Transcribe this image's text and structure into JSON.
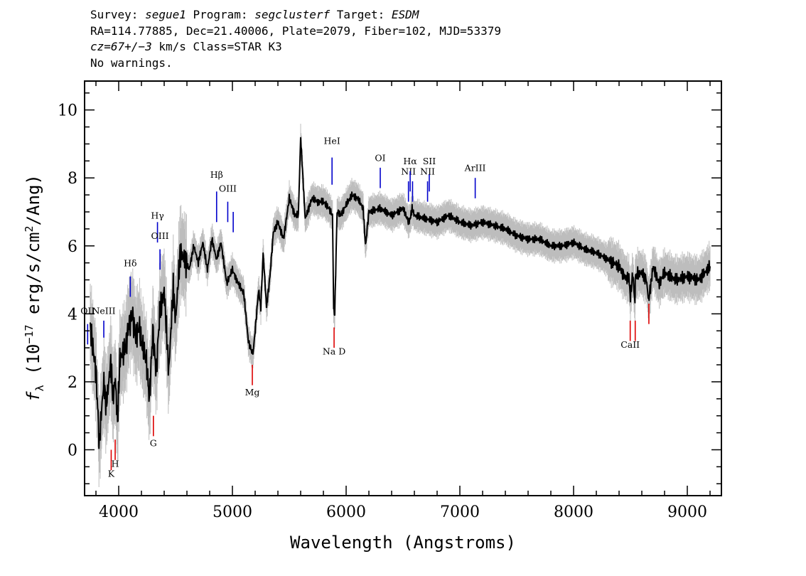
{
  "header": {
    "line1": {
      "survey_label": "Survey: ",
      "survey": "segue1",
      "program_label": " Program: ",
      "program": "segclusterf",
      "target_label": " Target: ",
      "target": "ESDM"
    },
    "line2": "RA=114.77885, Dec=21.40006, Plate=2079, Fiber=102, MJD=53379",
    "line3": {
      "cz": "cz=67+/−3",
      "rest": " km/s Class=STAR K3"
    },
    "line4": "No warnings."
  },
  "colors": {
    "flux": "#000000",
    "error": "#bdbdbd",
    "emission": "#0000cc",
    "absorption": "#dd0000",
    "axes": "#000000"
  },
  "chart_data": {
    "type": "line",
    "xlabel": "Wavelength (Angstroms)",
    "ylabel": "fλ (10⁻¹⁷ erg/s/cm²/Ang)",
    "xlim": [
      3700,
      9300
    ],
    "ylim": [
      -1.35,
      10.85
    ],
    "x_ticks": [
      4000,
      5000,
      6000,
      7000,
      8000,
      9000
    ],
    "y_ticks": [
      0,
      2,
      4,
      6,
      8,
      10
    ],
    "grid": false,
    "series": [
      {
        "x": [
          3750,
          3800,
          3830,
          3850,
          3870,
          3890,
          3910,
          3930,
          3950,
          3970,
          3990,
          4010,
          4030,
          4060,
          4090,
          4120,
          4150,
          4180,
          4210,
          4240,
          4270,
          4300,
          4330,
          4360,
          4400,
          4440,
          4480,
          4500,
          4540,
          4580,
          4620,
          4660,
          4700,
          4740,
          4780,
          4820,
          4860,
          4900,
          4950,
          5000,
          5050,
          5100,
          5140,
          5170,
          5180,
          5200,
          5230,
          5250,
          5270,
          5300,
          5330,
          5360,
          5400,
          5450,
          5500,
          5550,
          5580,
          5600,
          5640,
          5700,
          5750,
          5800,
          5850,
          5880,
          5890,
          5900,
          5920,
          5950,
          6000,
          6050,
          6100,
          6150,
          6170,
          6200,
          6300,
          6400,
          6500,
          6550,
          6563,
          6580,
          6600,
          6700,
          6800,
          6900,
          7000,
          7100,
          7200,
          7300,
          7400,
          7500,
          7600,
          7700,
          7800,
          7900,
          8000,
          8100,
          8200,
          8300,
          8400,
          8450,
          8490,
          8500,
          8520,
          8540,
          8542,
          8560,
          8600,
          8640,
          8660,
          8700,
          8750,
          8800,
          8900,
          9000,
          9100,
          9200
        ],
        "y": [
          3.6,
          2.3,
          0.2,
          1.2,
          2.0,
          1.3,
          1.9,
          2.6,
          1.5,
          2.1,
          0.8,
          2.7,
          2.8,
          3.0,
          3.7,
          4.0,
          3.3,
          3.6,
          3.0,
          2.7,
          1.5,
          3.5,
          2.3,
          4.0,
          4.7,
          2.3,
          4.8,
          3.8,
          5.8,
          5.6,
          5.3,
          6.0,
          5.5,
          6.1,
          5.3,
          6.2,
          5.6,
          6.1,
          4.9,
          5.3,
          4.9,
          4.6,
          3.2,
          2.9,
          2.8,
          3.5,
          4.7,
          4.2,
          5.8,
          4.2,
          5.1,
          6.4,
          6.7,
          6.2,
          7.4,
          6.9,
          6.9,
          9.2,
          6.8,
          7.4,
          7.3,
          7.3,
          7.1,
          6.9,
          4.2,
          4.0,
          7.0,
          6.9,
          7.2,
          7.5,
          7.4,
          7.1,
          6.0,
          7.0,
          7.1,
          6.9,
          7.1,
          6.7,
          6.8,
          7.1,
          6.9,
          6.8,
          6.7,
          6.9,
          6.7,
          6.6,
          6.7,
          6.6,
          6.5,
          6.3,
          6.2,
          6.2,
          6.0,
          6.0,
          6.1,
          5.9,
          5.8,
          5.6,
          5.4,
          5.1,
          5.0,
          4.5,
          5.2,
          4.3,
          5.0,
          5.2,
          5.2,
          5.0,
          4.4,
          5.4,
          4.9,
          5.2,
          5.0,
          5.1,
          5.0,
          5.4
        ]
      }
    ],
    "emission_lines": [
      {
        "label": "OII",
        "x": 3727,
        "y_label": 4.0,
        "y1": 3.1,
        "y2": 3.7
      },
      {
        "label": "NeIII",
        "x": 3869,
        "y_label": 4.0,
        "y1": 3.3,
        "y2": 3.8
      },
      {
        "label": "Hδ",
        "x": 4102,
        "y_label": 5.4,
        "y1": 4.5,
        "y2": 5.1
      },
      {
        "label": "Hγ",
        "x": 4341,
        "y_label": 6.8,
        "y1": 6.1,
        "y2": 6.7
      },
      {
        "label": "OIII",
        "x": 4363,
        "y_label": 6.2,
        "y1": 5.3,
        "y2": 5.9
      },
      {
        "label": "Hβ",
        "x": 4861,
        "y_label": 8.0,
        "y1": 6.7,
        "y2": 7.6
      },
      {
        "label": "OIII",
        "x": 4959,
        "y_label": 7.6,
        "y1": 6.7,
        "y2": 7.3
      },
      {
        "label": "",
        "x": 5007,
        "y1": 6.4,
        "y2": 7.0
      },
      {
        "label": "HeI",
        "x": 5876,
        "y_label": 9.0,
        "y1": 7.8,
        "y2": 8.6
      },
      {
        "label": "OI",
        "x": 6300,
        "y_label": 8.5,
        "y1": 7.7,
        "y2": 8.3
      },
      {
        "label": "NII",
        "x": 6548,
        "y_label": 8.1,
        "y1": 7.3,
        "y2": 7.9
      },
      {
        "label": "Hα",
        "x": 6563,
        "y_label": 8.4,
        "y1": 7.6,
        "y2": 8.2
      },
      {
        "label": "",
        "x": 6584,
        "y1": 7.3,
        "y2": 7.9
      },
      {
        "label": "NII",
        "x": 6716,
        "y_label": 8.1,
        "y1": 7.3,
        "y2": 7.9
      },
      {
        "label": "SII",
        "x": 6731,
        "y_label": 8.4,
        "y1": 7.6,
        "y2": 8.1
      },
      {
        "label": "ArIII",
        "x": 7135,
        "y_label": 8.2,
        "y1": 7.4,
        "y2": 8.0
      }
    ],
    "absorption_lines": [
      {
        "label": "K",
        "x": 3934,
        "y_label": -0.8,
        "y1": 0.0,
        "y2": -0.6
      },
      {
        "label": "H",
        "x": 3969,
        "y_label": -0.5,
        "y1": 0.3,
        "y2": -0.3
      },
      {
        "label": "G",
        "x": 4305,
        "y_label": 0.1,
        "y1": 1.0,
        "y2": 0.4
      },
      {
        "label": "Mg",
        "x": 5175,
        "y_label": 1.6,
        "y1": 2.5,
        "y2": 1.9
      },
      {
        "label": "Na D",
        "x": 5894,
        "y_label": 2.8,
        "y1": 3.6,
        "y2": 3.0
      },
      {
        "label": "CaII",
        "x": 8498,
        "y_label": 3.0,
        "y1": 3.8,
        "y2": 3.2
      },
      {
        "label": "",
        "x": 8542,
        "y1": 3.8,
        "y2": 3.2
      },
      {
        "label": "",
        "x": 8662,
        "y1": 4.3,
        "y2": 3.7
      }
    ]
  }
}
